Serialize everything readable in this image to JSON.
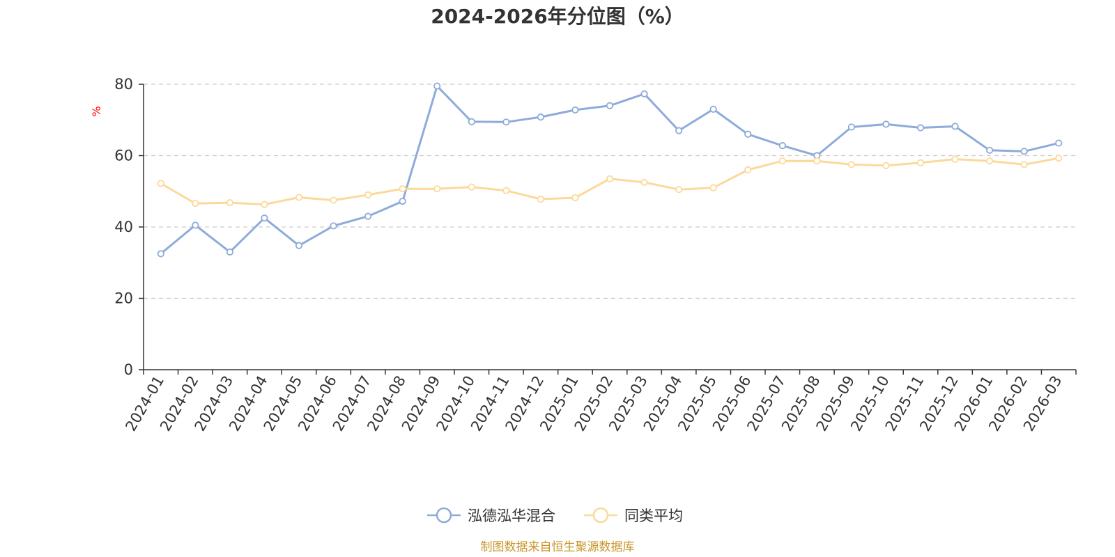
{
  "chart_data": {
    "type": "line",
    "title": "2024-2026年分位图（%）",
    "ylabel": "%",
    "xlabel": "",
    "ylim": [
      0,
      80
    ],
    "yticks": [
      0,
      20,
      40,
      60,
      80
    ],
    "grid": true,
    "legend_position": "bottom-center",
    "categories": [
      "2024-01",
      "2024-02",
      "2024-03",
      "2024-04",
      "2024-05",
      "2024-06",
      "2024-07",
      "2024-08",
      "2024-09",
      "2024-10",
      "2024-11",
      "2024-12",
      "2025-01",
      "2025-02",
      "2025-03",
      "2025-04",
      "2025-05",
      "2025-06",
      "2025-07",
      "2025-08",
      "2025-09",
      "2025-10",
      "2025-11",
      "2025-12",
      "2026-01",
      "2026-02",
      "2026-03"
    ],
    "series": [
      {
        "name": "泓德泓华混合",
        "color": "#8eabd9",
        "values": [
          32.5,
          40.5,
          33.0,
          42.5,
          34.8,
          40.3,
          43.0,
          47.2,
          79.5,
          69.5,
          69.4,
          70.8,
          72.8,
          74.0,
          77.3,
          67.0,
          73.0,
          66.0,
          62.8,
          60.0,
          68.0,
          68.8,
          67.8,
          68.2,
          61.5,
          61.2,
          63.5
        ]
      },
      {
        "name": "同类平均",
        "color": "#fbd99a",
        "values": [
          52.2,
          46.6,
          46.8,
          46.3,
          48.3,
          47.5,
          49.0,
          50.7,
          50.7,
          51.2,
          50.2,
          47.8,
          48.2,
          53.5,
          52.5,
          50.5,
          51.0,
          56.0,
          58.5,
          58.5,
          57.5,
          57.2,
          58.0,
          59.0,
          58.5,
          57.5,
          59.3
        ]
      }
    ]
  },
  "footer": {
    "source_text": "制图数据来自恒生聚源数据库",
    "source_color": "#c8962a"
  },
  "colors": {
    "ylabel_color": "#ff0000",
    "axis_color": "#333333",
    "grid_color": "#cccccc"
  }
}
